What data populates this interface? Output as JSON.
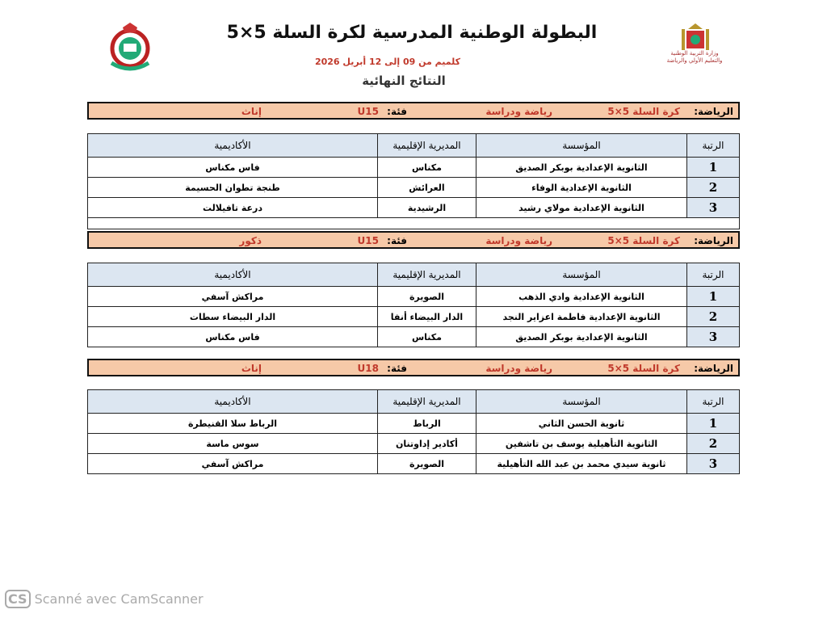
{
  "header": {
    "title": "البطولة الوطنية المدرسية لكرة السلة 5×5",
    "dates": "كلميم من 09 إلى 12 أبريل 2026",
    "subtitle": "النتائج النهائية",
    "ministry_text": "وزارة التربية الوطنية والتعليم الأولي والرياضة"
  },
  "columns": {
    "rank": "الرتبة",
    "institution": "المؤسسة",
    "directorate": "المديرية الإقليمية",
    "academy": "الأكاديمية"
  },
  "sections": [
    {
      "sport_label": "الرياضة:",
      "sport": "كرة السلة 5×5",
      "program": "رياضة ودراسة",
      "category_label": "فئة:",
      "category": "U15",
      "gender": "إناث",
      "rows": [
        {
          "rank": "1",
          "institution": "الثانوية الإعدادية بوبكر الصديق",
          "directorate": "مكناس",
          "academy": "فاس مكناس"
        },
        {
          "rank": "2",
          "institution": "الثانوية الإعدادية الوفاء",
          "directorate": "العرائش",
          "academy": "طنجة تطوان الحسيمة"
        },
        {
          "rank": "3",
          "institution": "الثانوية الإعدادية مولاي رشيد",
          "directorate": "الرشيدية",
          "academy": "درعة تافيلالت"
        }
      ]
    },
    {
      "sport_label": "الرياضة:",
      "sport": "كرة السلة 5×5",
      "program": "رياضة ودراسة",
      "category_label": "فئة:",
      "category": "U15",
      "gender": "ذكور",
      "rows": [
        {
          "rank": "1",
          "institution": "الثانوية الإعدادية وادي الذهب",
          "directorate": "الصويرة",
          "academy": "مراكش آسفي"
        },
        {
          "rank": "2",
          "institution": "الثانوية الإعدادية فاطمة اعزاير النجد",
          "directorate": "الدار البيضاء أنفا",
          "academy": "الدار البيضاء سطات"
        },
        {
          "rank": "3",
          "institution": "الثانوية الإعدادية بوبكر الصديق",
          "directorate": "مكناس",
          "academy": "فاس مكناس"
        }
      ]
    },
    {
      "sport_label": "الرياضة:",
      "sport": "كرة السلة 5×5",
      "program": "رياضة ودراسة",
      "category_label": "فئة:",
      "category": "U18",
      "gender": "إناث",
      "rows": [
        {
          "rank": "1",
          "institution": "ثانوية الحسن الثاني",
          "directorate": "الرباط",
          "academy": "الرباط سلا القنيطرة"
        },
        {
          "rank": "2",
          "institution": "الثانوية التأهيلية يوسف بن تاشفين",
          "directorate": "أكادير إداوتنان",
          "academy": "سوس ماسة"
        },
        {
          "rank": "3",
          "institution": "ثانوية سيدي محمد بن عبد الله التأهيلية",
          "directorate": "الصويرة",
          "academy": "مراكش آسفي"
        }
      ]
    }
  ],
  "watermark": {
    "logo": "CS",
    "text": "Scanné avec CamScanner"
  }
}
